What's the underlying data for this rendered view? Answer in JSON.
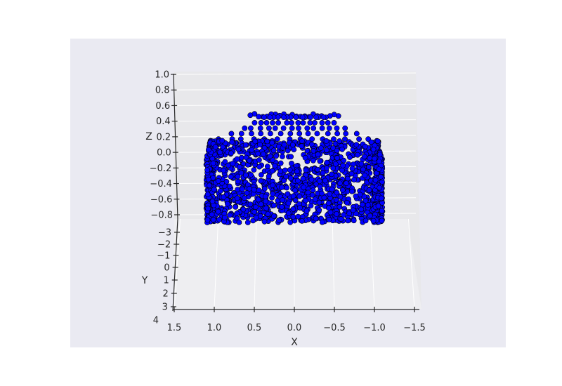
{
  "chart_data": {
    "type": "scatter",
    "projection": "3d",
    "title": "",
    "xlabel": "X",
    "ylabel": "Y",
    "zlabel": "Z",
    "xlim": [
      1.5,
      -1.5
    ],
    "ylim": [
      -3.5,
      4
    ],
    "zlim": [
      -0.9,
      1.0
    ],
    "x_ticks": [
      "1.5",
      "1.0",
      "0.5",
      "0.0",
      "−0.5",
      "−1.0",
      "−1.5"
    ],
    "y_ticks": [
      "−3",
      "−2",
      "−1",
      "0",
      "1",
      "2",
      "3",
      "4"
    ],
    "z_ticks": [
      "1.0",
      "0.8",
      "0.6",
      "0.4",
      "0.2",
      "0.0",
      "−0.2",
      "−0.4",
      "−0.6",
      "−0.8"
    ],
    "grid": true,
    "colors": {
      "figure_bg": "#ffffff",
      "axes_bg": "#eaeaf2",
      "pane": "#e6e6e6",
      "marker_fill": "#0000ff",
      "marker_edge": "#000000",
      "text": "#262626"
    },
    "series": [
      {
        "marker": "circle",
        "shape": "barrel-shaped point cloud",
        "x_range": [
          -1.1,
          1.1
        ],
        "z_range": [
          -0.9,
          0.5
        ]
      }
    ]
  }
}
